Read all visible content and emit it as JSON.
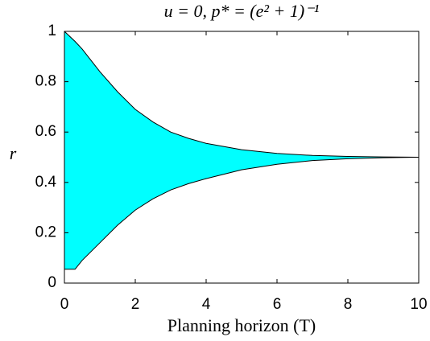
{
  "chart_data": {
    "type": "range-area",
    "title": "u = 0, p* = (e² + 1)⁻¹",
    "xlabel": "Planning horizon (T)",
    "ylabel": "r",
    "x": [
      0,
      0.3,
      0.5,
      1,
      1.5,
      2,
      2.5,
      3,
      3.5,
      4,
      5,
      6,
      7,
      8,
      9,
      10
    ],
    "series": [
      {
        "values": [
          1,
          0.96,
          0.93,
          0.84,
          0.76,
          0.69,
          0.64,
          0.6,
          0.575,
          0.555,
          0.53,
          0.515,
          0.507,
          0.503,
          0.501,
          0.5
        ]
      },
      {
        "values": [
          0.055,
          0.055,
          0.09,
          0.16,
          0.23,
          0.29,
          0.335,
          0.37,
          0.395,
          0.415,
          0.45,
          0.472,
          0.487,
          0.494,
          0.498,
          0.5
        ]
      }
    ],
    "color": "#00ffff",
    "xlim": [
      0,
      10
    ],
    "xticks": [
      0,
      2,
      4,
      6,
      8,
      10
    ],
    "ylim": [
      0,
      1
    ],
    "yticks": [
      0,
      0.2,
      0.4,
      0.6,
      0.8,
      1
    ],
    "grid": false
  }
}
